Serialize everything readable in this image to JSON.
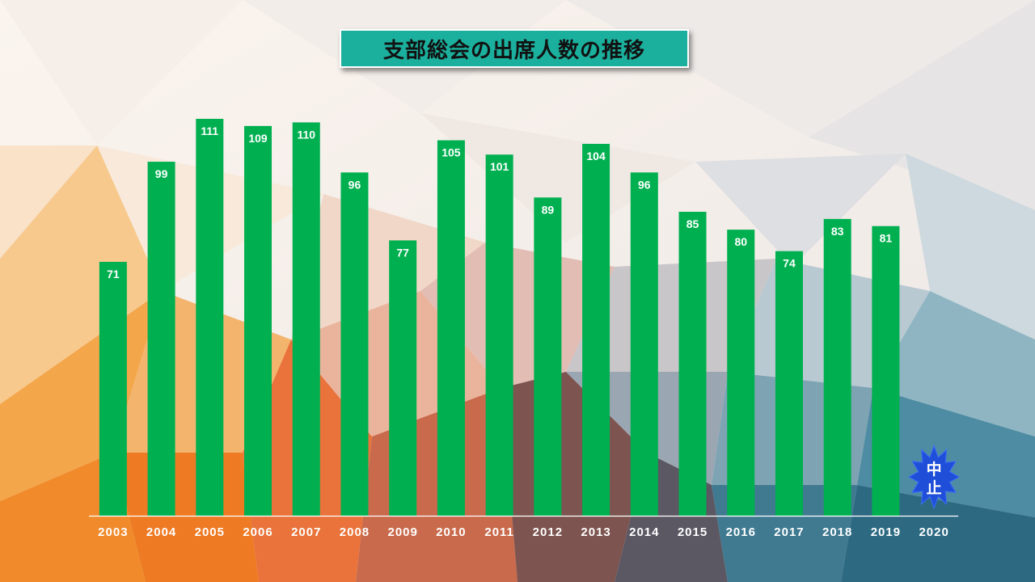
{
  "title": "支部総会の出席人数の推移",
  "colors": {
    "bar": "#00b050",
    "title_bg": "#1bb09d",
    "axis": "#ffffff",
    "label": "#ffffff",
    "burst": "#1f4fd8"
  },
  "cancel_badge": {
    "line1": "中",
    "line2": "止",
    "icon": "starburst-icon"
  },
  "chart_data": {
    "type": "bar",
    "title": "支部総会の出席人数の推移",
    "categories": [
      "2003",
      "2004",
      "2005",
      "2006",
      "2007",
      "2008",
      "2009",
      "2010",
      "2011",
      "2012",
      "2013",
      "2014",
      "2015",
      "2016",
      "2017",
      "2018",
      "2019",
      "2020"
    ],
    "values": [
      71,
      99,
      111,
      109,
      110,
      96,
      77,
      105,
      101,
      89,
      104,
      96,
      85,
      80,
      74,
      83,
      81,
      null
    ],
    "data_labels": [
      "71",
      "99",
      "111",
      "109",
      "110",
      "96",
      "77",
      "105",
      "101",
      "89",
      "104",
      "96",
      "85",
      "80",
      "74",
      "83",
      "81",
      ""
    ],
    "xlabel": "",
    "ylabel": "",
    "ylim": [
      0,
      112
    ],
    "grid": false,
    "legend": "none"
  }
}
